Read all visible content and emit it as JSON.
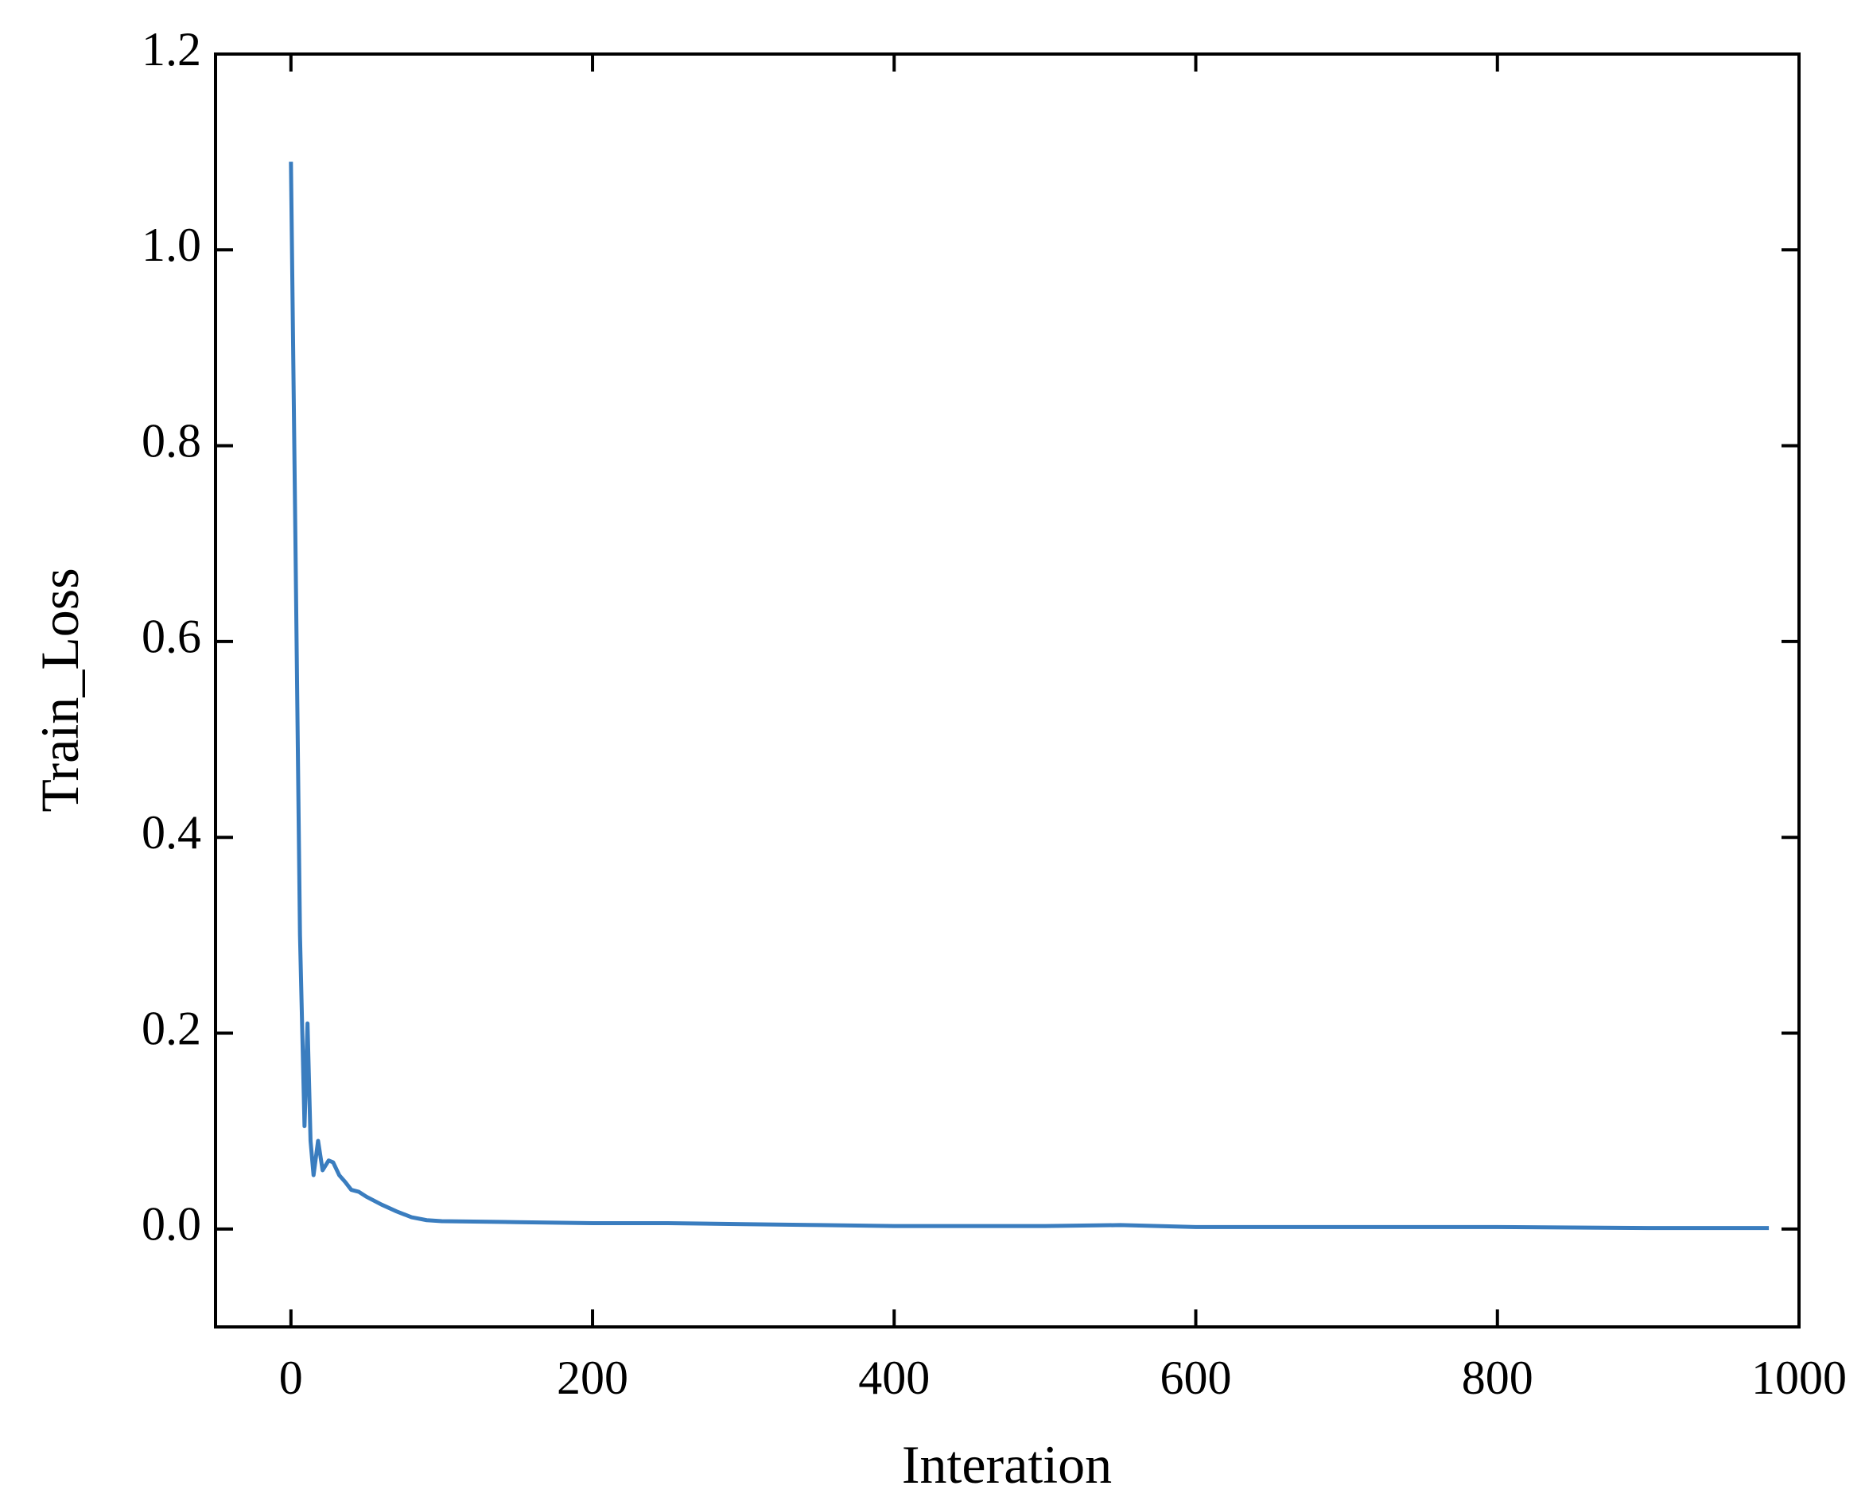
{
  "chart_data": {
    "type": "line",
    "x_label": "Interation",
    "y_label": "Train_Loss",
    "xlim": [
      -50,
      1000
    ],
    "ylim": [
      -0.1,
      1.2
    ],
    "xticks": [
      0,
      200,
      400,
      600,
      800,
      1000
    ],
    "yticks": [
      {
        "value": 0,
        "label": "0.0"
      },
      0.2,
      0.4,
      0.6,
      0.8,
      {
        "value": 1,
        "label": "1.0"
      },
      1.2
    ],
    "x": [
      0,
      3,
      6,
      9,
      11,
      13,
      15,
      18,
      21,
      25,
      28,
      32,
      36,
      40,
      45,
      50,
      60,
      70,
      80,
      90,
      100,
      150,
      200,
      250,
      300,
      350,
      400,
      450,
      500,
      550,
      600,
      700,
      800,
      900,
      980
    ],
    "series": [
      {
        "name": "Train_Loss",
        "color": "#3a7dbf",
        "values": [
          1.09,
          0.7,
          0.3,
          0.105,
          0.21,
          0.09,
          0.055,
          0.09,
          0.06,
          0.07,
          0.068,
          0.055,
          0.048,
          0.04,
          0.038,
          0.033,
          0.025,
          0.018,
          0.012,
          0.009,
          0.008,
          0.007,
          0.006,
          0.006,
          0.005,
          0.004,
          0.003,
          0.003,
          0.003,
          0.004,
          0.002,
          0.002,
          0.002,
          0.001,
          0.001
        ]
      }
    ]
  }
}
